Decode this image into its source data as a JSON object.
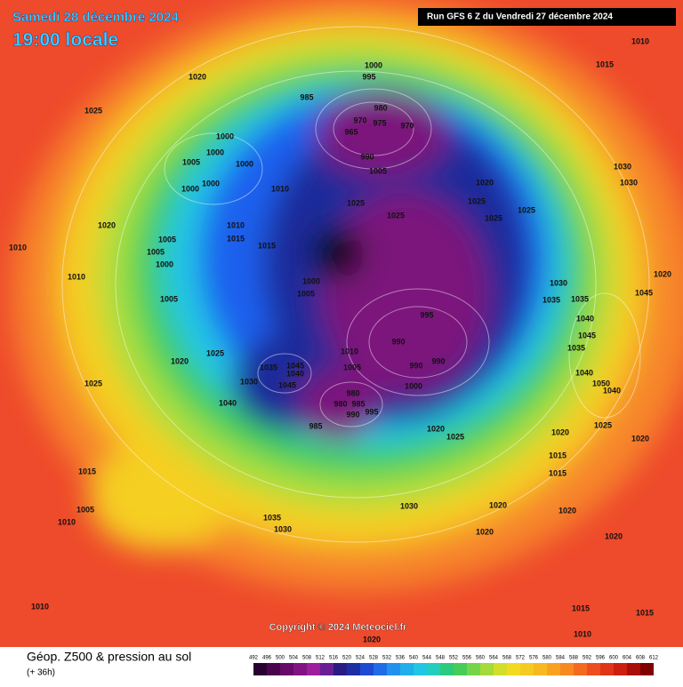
{
  "header": {
    "date": "Samedi 28 décembre 2024",
    "time": "19:00 locale",
    "run": "Run GFS 6 Z du Vendredi 27 décembre 2024"
  },
  "pressure_labels": [
    "1010",
    "1015",
    "1020",
    "1000",
    "995",
    "1025",
    "985",
    "980",
    "970",
    "975",
    "970",
    "965",
    "990",
    "1005",
    "1000",
    "1000",
    "1005",
    "1000",
    "1000",
    "1000",
    "1010",
    "1030",
    "1030",
    "1020",
    "1025",
    "1025",
    "1025",
    "1025",
    "1025",
    "1020",
    "1010",
    "1015",
    "1015",
    "1005",
    "1005",
    "1000",
    "1010",
    "1010",
    "1020",
    "1000",
    "1005",
    "1030",
    "1035",
    "1035",
    "1045",
    "1005",
    "995",
    "1040",
    "1045",
    "990",
    "1035",
    "1025",
    "1010",
    "1020",
    "990",
    "990",
    "1005",
    "1045",
    "1035",
    "1040",
    "1040",
    "1030",
    "1045",
    "1050",
    "1025",
    "1000",
    "1040",
    "980",
    "985",
    "980",
    "1040",
    "990",
    "995",
    "985",
    "1020",
    "1025",
    "1025",
    "1020",
    "1020",
    "1015",
    "1015",
    "1015",
    "1030",
    "1020",
    "1020",
    "1005",
    "1010",
    "1035",
    "1030",
    "1020",
    "1020",
    "1010",
    "1015",
    "1015",
    "1020",
    "1010"
  ],
  "footer": {
    "copyright": "Copyright © 2024 Meteociel.fr",
    "title": "Géop. Z500 & pression au sol",
    "lead": "(+ 36h)"
  },
  "color_scale": {
    "labels": [
      492,
      496,
      500,
      504,
      508,
      512,
      516,
      520,
      524,
      528,
      532,
      536,
      540,
      544,
      548,
      552,
      556,
      560,
      564,
      568,
      572,
      576,
      580,
      584,
      588,
      592,
      596,
      600,
      604,
      608,
      612
    ]
  }
}
